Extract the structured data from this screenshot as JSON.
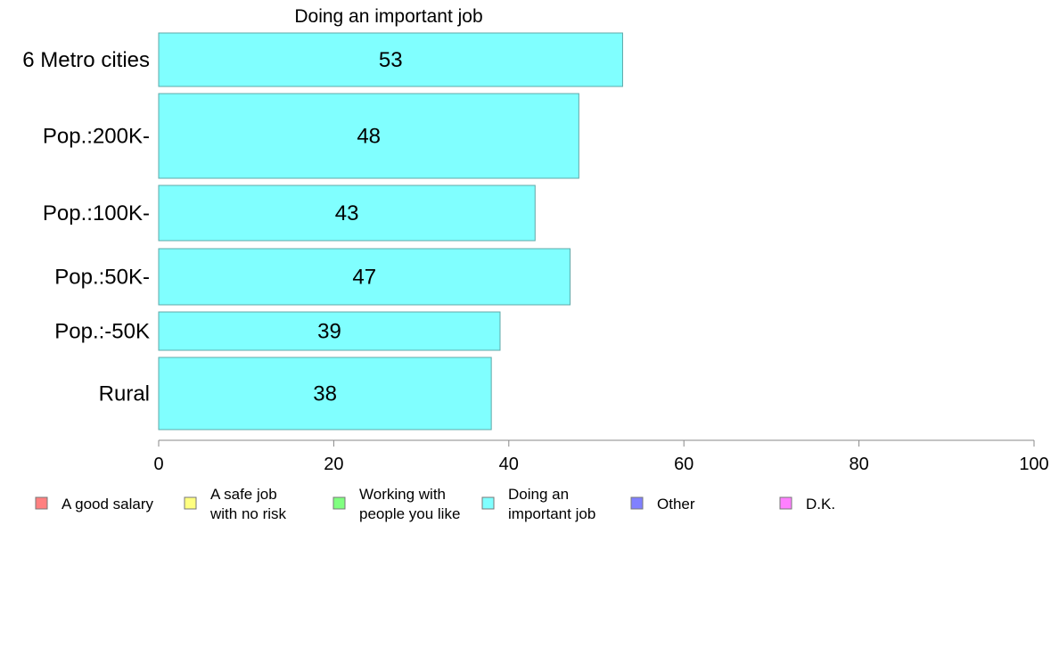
{
  "chart_data": {
    "type": "bar",
    "orientation": "horizontal",
    "title": "Doing an important job",
    "xlabel": "",
    "ylabel": "",
    "categories": [
      "6 Metro cities",
      "Pop.:200K-",
      "Pop.:100K-",
      "Pop.:50K-",
      "Pop.:-50K",
      "Rural"
    ],
    "values": [
      53,
      48,
      43,
      47,
      39,
      38
    ],
    "data_labels": [
      "53",
      "48",
      "43",
      "47",
      "39",
      "38"
    ],
    "series": [
      {
        "name": "Doing an important job",
        "values": [
          53,
          48,
          43,
          47,
          39,
          38
        ]
      }
    ],
    "xlim": [
      0,
      100
    ],
    "x_ticks": [
      0,
      20,
      40,
      60,
      80,
      100
    ],
    "x_tick_labels": [
      "0",
      "20",
      "40",
      "60",
      "80",
      "100"
    ],
    "grid": false,
    "bar_color": "#80ffff",
    "legend_placement": "bottom",
    "legend": [
      {
        "lines": [
          "A good salary"
        ],
        "color": "#ff8080"
      },
      {
        "lines": [
          "A safe job",
          "with no risk"
        ],
        "color": "#ffff80"
      },
      {
        "lines": [
          "Working with",
          "people you like"
        ],
        "color": "#80ff80"
      },
      {
        "lines": [
          "Doing an",
          "important job"
        ],
        "color": "#80ffff"
      },
      {
        "lines": [
          "Other"
        ],
        "color": "#8080ff"
      },
      {
        "lines": [
          "D.K."
        ],
        "color": "#ff80ff"
      }
    ]
  }
}
